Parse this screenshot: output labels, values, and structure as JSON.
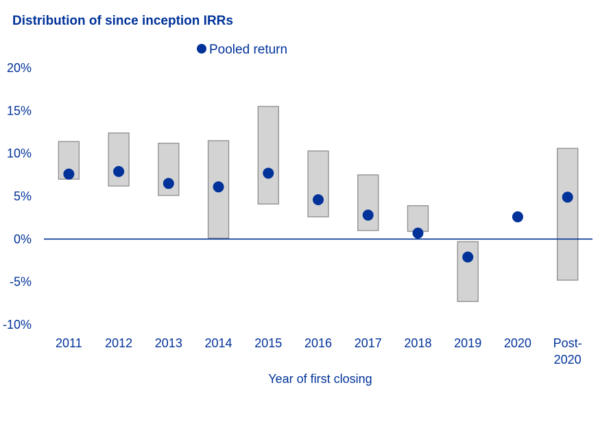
{
  "chart_data": {
    "type": "floating-bar-with-points",
    "title": "Distribution of since inception IRRs",
    "xlabel": "Year of first closing",
    "ylabel": "",
    "ylim": [
      -10,
      20
    ],
    "yticks": [
      20,
      15,
      10,
      5,
      0,
      -5,
      -10
    ],
    "ytick_labels": [
      "20%",
      "15%",
      "10%",
      "5%",
      "0%",
      "-5%",
      "-10%"
    ],
    "categories": [
      "2011",
      "2012",
      "2013",
      "2014",
      "2015",
      "2016",
      "2017",
      "2018",
      "2019",
      "2020",
      "Post-2020"
    ],
    "category_labels": [
      [
        "2011"
      ],
      [
        "2012"
      ],
      [
        "2013"
      ],
      [
        "2014"
      ],
      [
        "2015"
      ],
      [
        "2016"
      ],
      [
        "2017"
      ],
      [
        "2018"
      ],
      [
        "2019"
      ],
      [
        "2020"
      ],
      [
        "Post-",
        "2020"
      ]
    ],
    "ranges": [
      [
        7.0,
        11.4
      ],
      [
        6.2,
        12.4
      ],
      [
        5.1,
        11.2
      ],
      [
        0.1,
        11.5
      ],
      [
        4.1,
        15.5
      ],
      [
        2.6,
        10.3
      ],
      [
        1.0,
        7.5
      ],
      [
        0.9,
        3.9
      ],
      [
        -7.3,
        -0.3
      ],
      null,
      [
        -4.8,
        10.6
      ]
    ],
    "series": [
      {
        "name": "Pooled return",
        "values": [
          7.6,
          7.9,
          6.5,
          6.1,
          7.7,
          4.6,
          2.8,
          0.7,
          -2.1,
          2.6,
          4.9
        ]
      }
    ],
    "legend_position": "top",
    "colors": {
      "text": "#003299",
      "marker": "#003299",
      "range_fill": "#d3d3d3",
      "range_stroke": "#8c8c8c",
      "zero_line": "#003299"
    },
    "grid": false
  }
}
